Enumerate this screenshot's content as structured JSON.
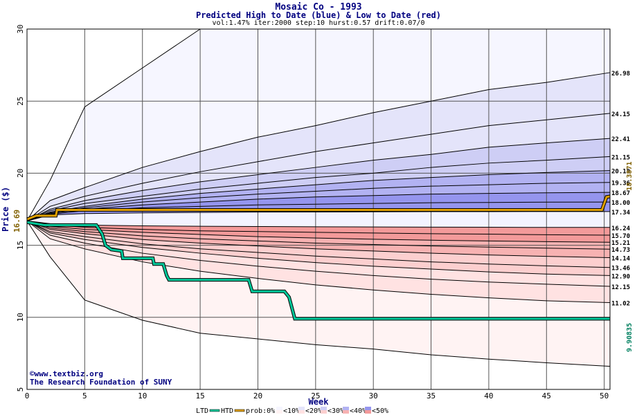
{
  "chart_data": {
    "type": "area",
    "title": "Mosaic Co - 1993",
    "subtitle": "Predicted High to Date (blue) &  Low to Date (red)",
    "params": "vol:1.47% iter:2000 step:10 hurst:0.57 drift:0.07/0",
    "xlabel": "Week",
    "ylabel": "Price ($)",
    "xlim": [
      0,
      50.5
    ],
    "ylim": [
      5,
      30
    ],
    "x_ticks": [
      0,
      5,
      10,
      15,
      20,
      25,
      30,
      35,
      40,
      45,
      50
    ],
    "y_ticks": [
      5,
      10,
      15,
      20,
      25,
      30
    ],
    "grid": true,
    "start_price": "16.69",
    "weeks": [
      0,
      2,
      5,
      10,
      15,
      20,
      25,
      30,
      35,
      40,
      45,
      50.5
    ],
    "high_quantiles": [
      {
        "label": "26.98",
        "values": [
          16.69,
          18.1,
          19.0,
          20.4,
          21.5,
          22.5,
          23.3,
          24.2,
          25.0,
          25.8,
          26.3,
          26.98
        ]
      },
      {
        "label": "24.15",
        "values": [
          16.69,
          17.7,
          18.4,
          19.3,
          20.1,
          20.8,
          21.5,
          22.1,
          22.7,
          23.3,
          23.7,
          24.15
        ]
      },
      {
        "label": "22.41",
        "values": [
          16.69,
          17.5,
          18.1,
          18.8,
          19.4,
          19.9,
          20.4,
          20.9,
          21.3,
          21.8,
          22.1,
          22.41
        ]
      },
      {
        "label": "21.15",
        "values": [
          16.69,
          17.4,
          17.9,
          18.4,
          18.9,
          19.3,
          19.7,
          20.0,
          20.4,
          20.7,
          20.9,
          21.15
        ]
      },
      {
        "label": "20.18",
        "values": [
          16.69,
          17.3,
          17.7,
          18.2,
          18.6,
          18.9,
          19.2,
          19.5,
          19.7,
          19.9,
          20.05,
          20.18
        ]
      },
      {
        "label": "19.36",
        "values": [
          16.69,
          17.25,
          17.6,
          18.0,
          18.3,
          18.55,
          18.75,
          18.95,
          19.1,
          19.2,
          19.3,
          19.36
        ]
      },
      {
        "label": "18.67",
        "values": [
          16.69,
          17.2,
          17.5,
          17.8,
          18.0,
          18.2,
          18.35,
          18.45,
          18.55,
          18.6,
          18.64,
          18.67
        ]
      },
      {
        "label": "18.00",
        "values": [
          16.69,
          17.15,
          17.4,
          17.6,
          17.7,
          17.8,
          17.85,
          17.9,
          17.95,
          17.97,
          17.99,
          18.0
        ]
      },
      {
        "label": "17.34",
        "values": [
          16.69,
          17.1,
          17.2,
          17.25,
          17.28,
          17.3,
          17.31,
          17.32,
          17.33,
          17.33,
          17.34,
          17.34
        ]
      }
    ],
    "high_max": [
      16.69,
      19.5,
      24.6,
      27.3,
      30.0,
      30.0,
      30.0,
      30.0,
      30.0,
      30.0,
      30.0,
      30.0
    ],
    "low_quantiles": [
      {
        "label": "16.24",
        "values": [
          16.69,
          16.5,
          16.4,
          16.35,
          16.32,
          16.3,
          16.28,
          16.27,
          16.26,
          16.25,
          16.24,
          16.24
        ]
      },
      {
        "label": "15.70",
        "values": [
          16.69,
          16.4,
          16.25,
          16.1,
          16.0,
          15.95,
          15.9,
          15.85,
          15.8,
          15.77,
          15.73,
          15.7
        ]
      },
      {
        "label": "15.21",
        "values": [
          16.69,
          16.3,
          16.1,
          15.9,
          15.75,
          15.6,
          15.5,
          15.42,
          15.35,
          15.3,
          15.25,
          15.21
        ]
      },
      {
        "label": "14.73",
        "values": [
          16.69,
          16.2,
          15.95,
          15.65,
          15.45,
          15.3,
          15.15,
          15.05,
          14.95,
          14.87,
          14.8,
          14.73
        ]
      },
      {
        "label": "14.14",
        "values": [
          16.69,
          16.1,
          15.8,
          15.4,
          15.15,
          14.95,
          14.75,
          14.6,
          14.45,
          14.33,
          14.23,
          14.14
        ]
      },
      {
        "label": "13.46",
        "values": [
          16.69,
          15.95,
          15.6,
          15.1,
          14.75,
          14.5,
          14.25,
          14.05,
          13.85,
          13.7,
          13.57,
          13.46
        ]
      },
      {
        "label": "12.90",
        "values": [
          16.69,
          15.85,
          15.4,
          14.85,
          14.45,
          14.1,
          13.8,
          13.55,
          13.35,
          13.15,
          13.0,
          12.9
        ]
      },
      {
        "label": "12.15",
        "values": [
          16.69,
          15.7,
          15.15,
          14.45,
          13.95,
          13.55,
          13.2,
          12.9,
          12.65,
          12.45,
          12.3,
          12.15
        ]
      },
      {
        "label": "11.02",
        "values": [
          16.69,
          15.45,
          14.75,
          13.85,
          13.2,
          12.7,
          12.25,
          11.9,
          11.6,
          11.35,
          11.15,
          11.02
        ]
      }
    ],
    "low_min": [
      16.69,
      14.2,
      11.2,
      9.8,
      8.9,
      8.5,
      8.1,
      7.8,
      7.4,
      7.1,
      6.85,
      6.6
    ],
    "htd_series": {
      "name": "HTD",
      "color": "#e0a000",
      "points": [
        [
          0,
          16.8
        ],
        [
          0.8,
          17.05
        ],
        [
          2.5,
          17.05
        ],
        [
          2.6,
          17.45
        ],
        [
          49.8,
          17.45
        ],
        [
          50.2,
          18.35
        ],
        [
          50.5,
          18.3871
        ]
      ],
      "end_label": "18.3871"
    },
    "ltd_series": {
      "name": "LTD",
      "color": "#00c89a",
      "points": [
        [
          0,
          16.6
        ],
        [
          1.5,
          16.4
        ],
        [
          6,
          16.4
        ],
        [
          6.5,
          15.8
        ],
        [
          6.8,
          15.0
        ],
        [
          7.3,
          14.7
        ],
        [
          8.2,
          14.6
        ],
        [
          8.3,
          14.1
        ],
        [
          10.9,
          14.1
        ],
        [
          11.0,
          13.7
        ],
        [
          11.8,
          13.7
        ],
        [
          12.1,
          12.9
        ],
        [
          12.3,
          12.6
        ],
        [
          19.2,
          12.6
        ],
        [
          19.5,
          11.8
        ],
        [
          22.3,
          11.8
        ],
        [
          22.7,
          11.4
        ],
        [
          23.2,
          9.9
        ],
        [
          50.5,
          9.9
        ]
      ],
      "end_label": "9.90835"
    },
    "legend": {
      "items": [
        "LTD",
        "HTD",
        "prob:0%",
        "<10%",
        "<20%",
        "<30%",
        "<40%",
        "<50%"
      ],
      "blue_colors": [
        "#f6f6ff",
        "#e4e4fa",
        "#ceceF5",
        "#b2b2f2",
        "#9595ee"
      ],
      "red_colors": [
        "#fff3f3",
        "#ffe2e2",
        "#fccfcf",
        "#f7b2b2",
        "#f39a9a"
      ]
    },
    "credits": [
      "©www.textbiz.org",
      "The Research Foundation of SUNY"
    ]
  }
}
